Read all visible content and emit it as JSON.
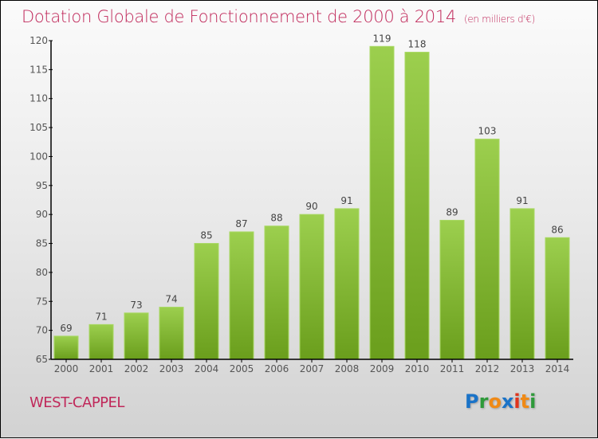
{
  "chart_data": {
    "type": "bar",
    "title": "Dotation Globale de Fonctionnement de 2000 à 2014",
    "subtitle": "(en milliers d'€)",
    "xlabel": "",
    "ylabel": "",
    "categories": [
      "2000",
      "2001",
      "2002",
      "2003",
      "2004",
      "2005",
      "2006",
      "2007",
      "2008",
      "2009",
      "2010",
      "2011",
      "2012",
      "2013",
      "2014"
    ],
    "values": [
      69,
      71,
      73,
      74,
      85,
      87,
      88,
      90,
      91,
      119,
      118,
      89,
      103,
      91,
      86
    ],
    "ylim": [
      65,
      120
    ],
    "yticks": [
      65,
      70,
      75,
      80,
      85,
      90,
      95,
      100,
      105,
      110,
      115,
      120
    ],
    "grid": false,
    "legend": "none",
    "bar_color_top": "#9ccf4e",
    "bar_color_bottom": "#6a9e1c"
  },
  "footer": {
    "town": "WEST-CAPPEL",
    "logo": {
      "letters": [
        {
          "ch": "P",
          "color": "#1a73c8"
        },
        {
          "ch": "r",
          "color": "#2e9a3a"
        },
        {
          "ch": "o",
          "color": "#f08a16"
        },
        {
          "ch": "x",
          "color": "#1a73c8"
        },
        {
          "ch": "i",
          "color": "#e0341c"
        },
        {
          "ch": "t",
          "color": "#f08a16"
        },
        {
          "ch": "i",
          "color": "#2e9a3a"
        }
      ]
    }
  },
  "colors": {
    "title": "#c0285a",
    "axis": "#000000"
  }
}
